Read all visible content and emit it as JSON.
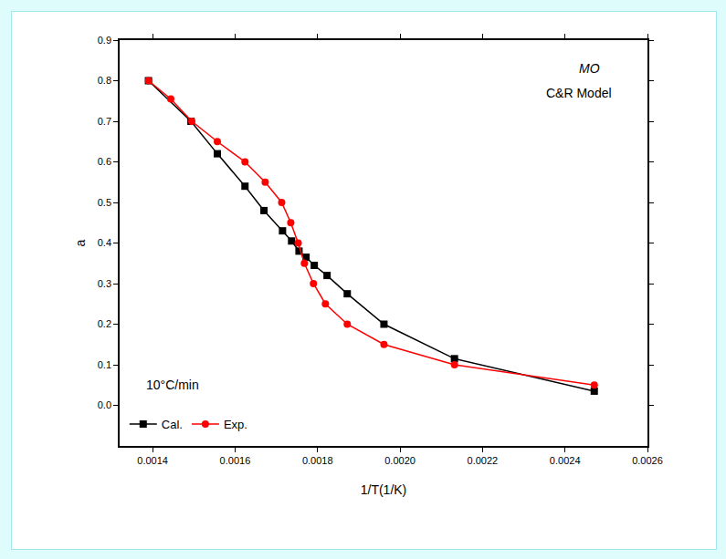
{
  "chart_data": {
    "type": "line",
    "x_label": "1/T(1/K)",
    "y_label": "a",
    "annotations": [
      "MO",
      "C&R Model",
      "10°C/min"
    ],
    "xlim": [
      0.00132,
      0.0026
    ],
    "xticks": [
      0.0014,
      0.0016,
      0.0018,
      {
        "value": 0.002,
        "label": "0.0020"
      },
      0.0022,
      0.0024,
      0.0026
    ],
    "ylim": [
      -0.1,
      0.9
    ],
    "yticks": [
      {
        "value": 0,
        "label": "0.0"
      },
      0.1,
      0.2,
      0.3,
      0.4,
      0.5,
      0.6,
      0.7,
      0.8,
      0.9
    ],
    "grid": false,
    "legend": "bottom left",
    "series": [
      {
        "name": "Cal.",
        "color": "#000000",
        "marker": "square",
        "line_style": "solid",
        "x": [
          0.00139,
          0.001493,
          0.001557,
          0.001624,
          0.00167,
          0.001715,
          0.001737,
          0.001755,
          0.001772,
          0.001792,
          0.001823,
          0.001872,
          0.001961,
          0.002132,
          0.002471
        ],
        "values": [
          0.8,
          0.7,
          0.62,
          0.54,
          0.48,
          0.43,
          0.405,
          0.38,
          0.365,
          0.345,
          0.32,
          0.275,
          0.2,
          0.115,
          0.035
        ]
      },
      {
        "name": "Exp.",
        "color": "#ff0000",
        "marker": "circle",
        "line_style": "solid",
        "x": [
          0.00139,
          0.001444,
          0.001495,
          0.001557,
          0.001624,
          0.001673,
          0.001713,
          0.001735,
          0.001753,
          0.001768,
          0.00179,
          0.001819,
          0.001872,
          0.001961,
          0.002132,
          0.002471
        ],
        "values": [
          0.8,
          0.755,
          0.7,
          0.65,
          0.6,
          0.55,
          0.5,
          0.45,
          0.4,
          0.35,
          0.3,
          0.25,
          0.2,
          0.15,
          0.1,
          0.05
        ]
      }
    ]
  }
}
